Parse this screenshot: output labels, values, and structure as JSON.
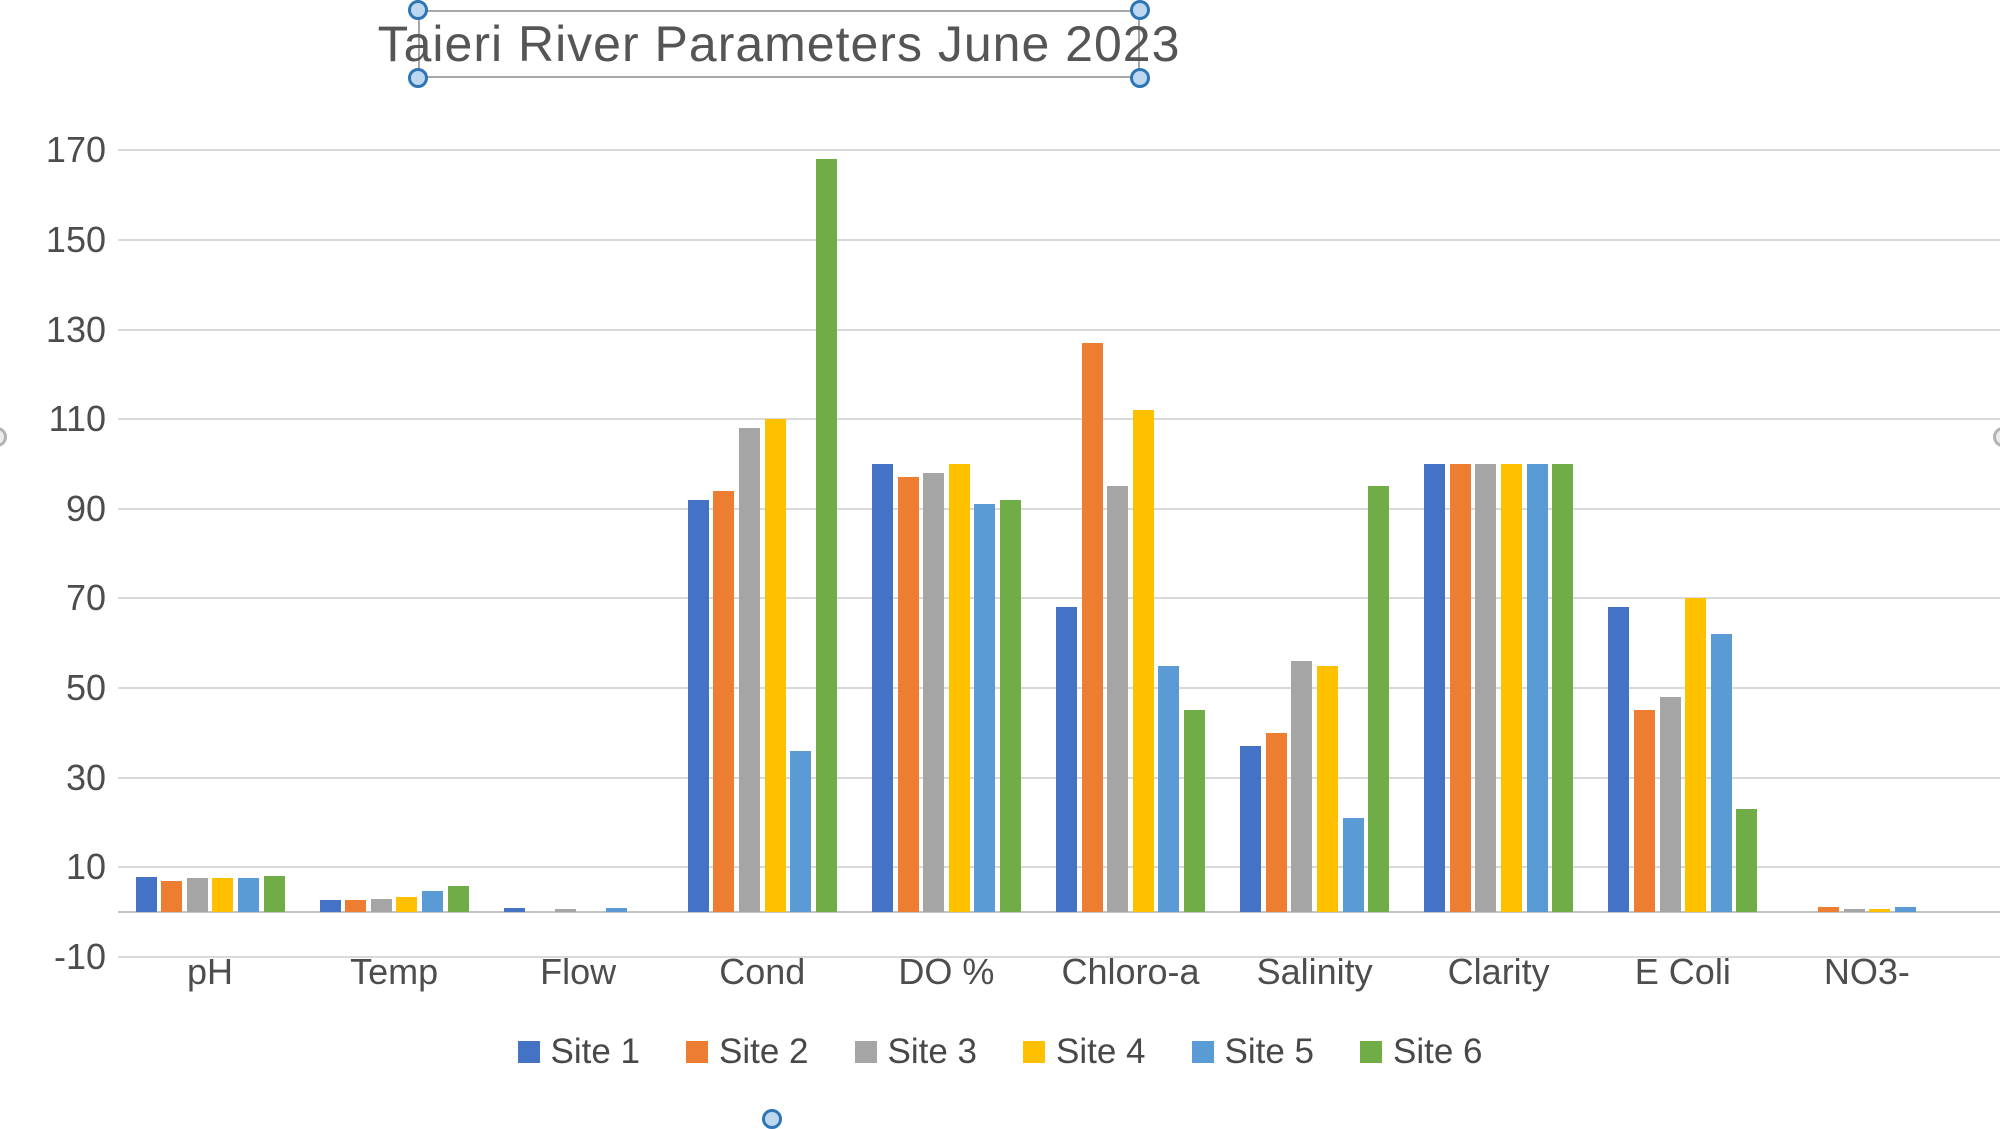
{
  "chart_data": {
    "type": "bar",
    "title": "Taieri River Parameters June 2023",
    "categories": [
      "pH",
      "Temp",
      "Flow",
      "Cond",
      "DO %",
      "Chloro-a",
      "Salinity",
      "Clarity",
      "E Coli",
      "NO3-"
    ],
    "series": [
      {
        "name": "Site 1",
        "color": "#4472C4",
        "values": [
          7.8,
          2.8,
          0.8,
          92,
          100,
          68,
          37,
          100,
          68,
          0
        ]
      },
      {
        "name": "Site 2",
        "color": "#ED7D31",
        "values": [
          7.0,
          2.8,
          0,
          94,
          97,
          127,
          40,
          100,
          45,
          1.2
        ]
      },
      {
        "name": "Site 3",
        "color": "#A5A5A5",
        "values": [
          7.5,
          2.9,
          0.7,
          108,
          98,
          95,
          56,
          100,
          48,
          0.6
        ]
      },
      {
        "name": "Site 4",
        "color": "#FFC000",
        "values": [
          7.7,
          3.4,
          0,
          110,
          100,
          112,
          55,
          100,
          70,
          0.6
        ]
      },
      {
        "name": "Site 5",
        "color": "#5B9BD5",
        "values": [
          7.5,
          4.7,
          0.8,
          36,
          91,
          55,
          21,
          100,
          62,
          1.2
        ]
      },
      {
        "name": "Site 6",
        "color": "#70AD47",
        "values": [
          8.0,
          5.9,
          0,
          168,
          92,
          45,
          95,
          100,
          23,
          0
        ]
      }
    ],
    "y_axis": {
      "tick_labels": [
        "170",
        "150",
        "130",
        "110",
        "90",
        "70",
        "50",
        "30",
        "10",
        "-10"
      ],
      "ticks": [
        170,
        150,
        130,
        110,
        90,
        70,
        50,
        30,
        10,
        -10
      ],
      "min": -10,
      "max": 170,
      "gridline_step": 20
    },
    "xlabel": "",
    "ylabel": "",
    "grid": true,
    "legend_position": "bottom"
  },
  "colors": {
    "gridline": "#D9D9D9",
    "axis_line": "#C3C3C3",
    "label_text": "#4D4D4D",
    "title_text": "#555555",
    "selection_handle_ring": "#2E75B6",
    "selection_handle_fill": "#BDD7EE"
  }
}
